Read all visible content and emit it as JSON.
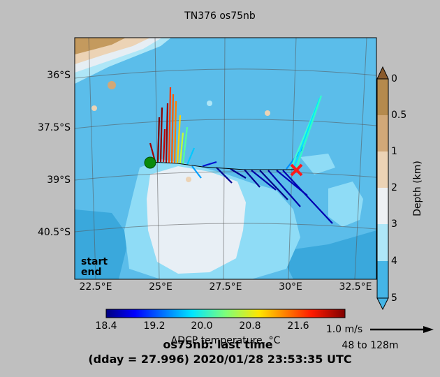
{
  "title": "TN376 os75nb",
  "latitude_labels": [
    "36°S",
    "37.5°S",
    "39°S",
    "40.5°S"
  ],
  "longitude_labels": [
    "22.5°E",
    "25°E",
    "27.5°E",
    "30°E",
    "32.5°E"
  ],
  "legend": {
    "start": "start",
    "end": "end",
    "start_color": "#008000",
    "end_color": "#ff0000"
  },
  "depth_colorbar": {
    "label": "Depth (km)",
    "ticks": [
      "0",
      "0.5",
      "1",
      "2",
      "3",
      "4",
      "5"
    ],
    "colors": [
      "#b58a4d",
      "#d1a878",
      "#ecd3b5",
      "#eef1f4",
      "#aee6f7",
      "#7dd3f3",
      "#45b5e6"
    ]
  },
  "temperature_colorbar": {
    "label": "ADCP temperature, °C",
    "ticks": [
      "18.4",
      "19.2",
      "20.0",
      "20.8",
      "21.6"
    ]
  },
  "scale_arrow": {
    "label": "1.0 m/s",
    "depth_range": "48 to 128m"
  },
  "footer": {
    "line1": "os75nb: last time",
    "line2": "(dday = 27.996) 2020/01/28 23:53:35 UTC"
  },
  "markers": {
    "start_color": "#0a8a0a",
    "end_color": "#ff1a1a"
  }
}
